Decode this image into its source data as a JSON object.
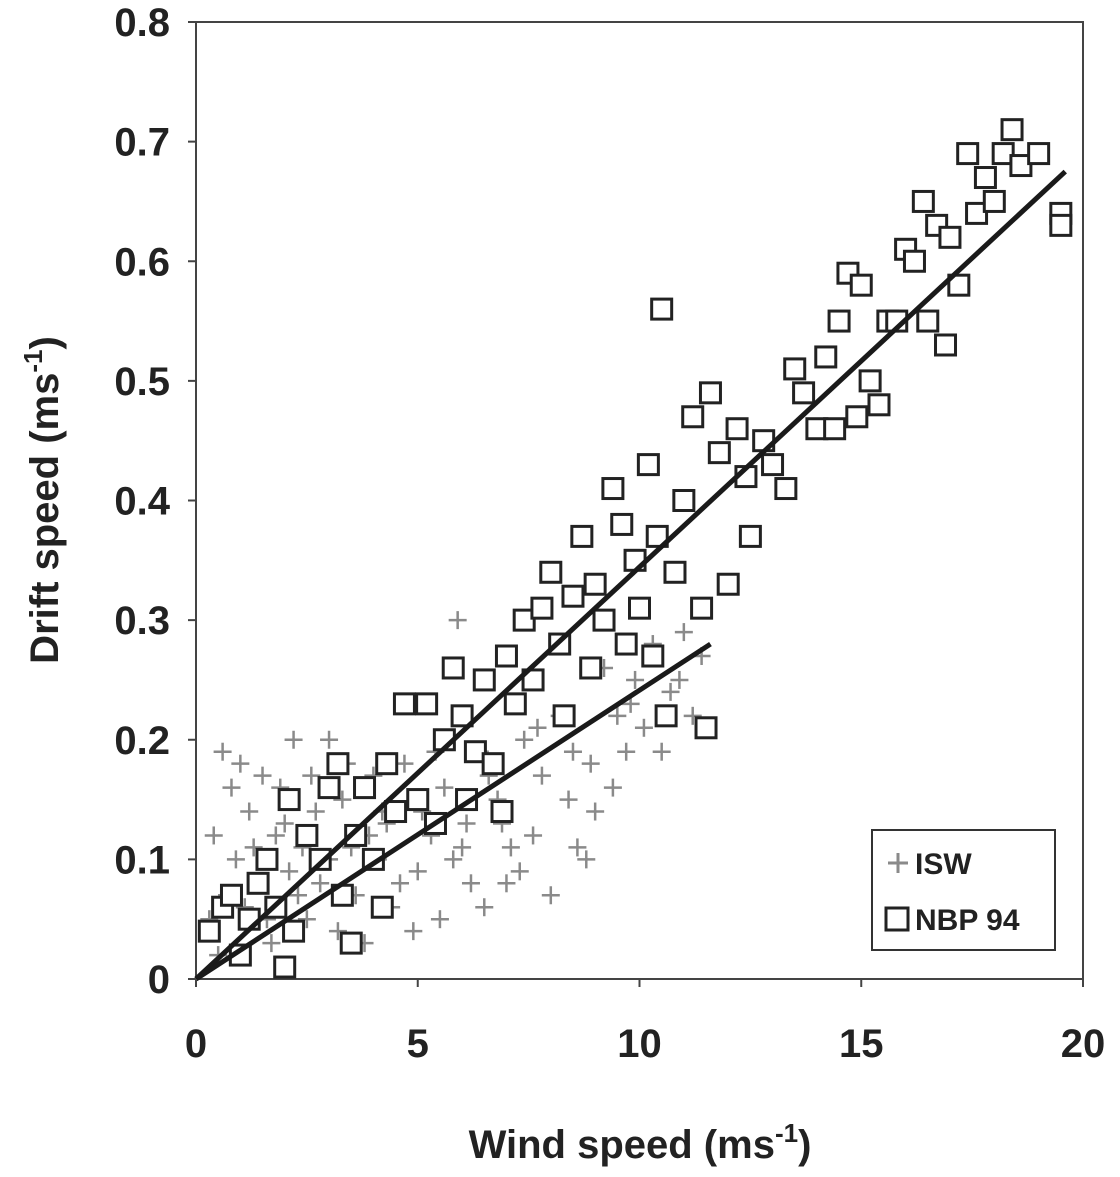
{
  "chart_data": {
    "type": "scatter",
    "xlabel": "Wind speed (ms",
    "xlabel_sup": "-1",
    "xlabel_end": ")",
    "ylabel": "Drift speed (ms",
    "ylabel_sup": "-1",
    "ylabel_end": ")",
    "xlim": [
      0,
      20
    ],
    "ylim": [
      0,
      0.8
    ],
    "x_ticks": [
      "0",
      "5",
      "10",
      "15",
      "20"
    ],
    "y_ticks": [
      "0",
      "0.1",
      "0.2",
      "0.3",
      "0.4",
      "0.5",
      "0.6",
      "0.7",
      "0.8"
    ],
    "grid": false,
    "legend_position": "bottom-right",
    "series": [
      {
        "name": "ISW",
        "marker": "cross",
        "color": "#8a8a8a",
        "description_range": "dense cloud for wind 0–12 ms-1, drift 0–0.3 ms-1",
        "points": [
          [
            0.6,
            0.19
          ],
          [
            0.8,
            0.16
          ],
          [
            1.0,
            0.18
          ],
          [
            1.2,
            0.14
          ],
          [
            0.4,
            0.12
          ],
          [
            0.9,
            0.1
          ],
          [
            1.5,
            0.17
          ],
          [
            1.8,
            0.12
          ],
          [
            2.2,
            0.2
          ],
          [
            2.6,
            0.17
          ],
          [
            3.0,
            0.2
          ],
          [
            3.3,
            0.15
          ],
          [
            2.1,
            0.09
          ],
          [
            2.8,
            0.08
          ],
          [
            3.5,
            0.11
          ],
          [
            4.0,
            0.17
          ],
          [
            4.3,
            0.13
          ],
          [
            4.7,
            0.18
          ],
          [
            5.0,
            0.09
          ],
          [
            5.3,
            0.12
          ],
          [
            5.6,
            0.16
          ],
          [
            5.9,
            0.3
          ],
          [
            6.1,
            0.13
          ],
          [
            6.4,
            0.19
          ],
          [
            6.8,
            0.15
          ],
          [
            7.1,
            0.11
          ],
          [
            7.4,
            0.2
          ],
          [
            7.8,
            0.17
          ],
          [
            8.0,
            0.07
          ],
          [
            8.2,
            0.22
          ],
          [
            8.6,
            0.11
          ],
          [
            8.9,
            0.18
          ],
          [
            9.2,
            0.26
          ],
          [
            9.5,
            0.22
          ],
          [
            9.9,
            0.25
          ],
          [
            10.3,
            0.28
          ],
          [
            10.7,
            0.24
          ],
          [
            11.0,
            0.29
          ],
          [
            11.4,
            0.27
          ],
          [
            7.0,
            0.08
          ],
          [
            6.5,
            0.06
          ],
          [
            5.5,
            0.05
          ],
          [
            4.9,
            0.04
          ],
          [
            4.4,
            0.06
          ],
          [
            3.8,
            0.03
          ],
          [
            3.2,
            0.04
          ],
          [
            2.5,
            0.05
          ],
          [
            1.7,
            0.03
          ],
          [
            0.3,
            0.05
          ],
          [
            0.5,
            0.02
          ],
          [
            1.1,
            0.06
          ],
          [
            1.4,
            0.08
          ],
          [
            2.0,
            0.13
          ],
          [
            2.4,
            0.11
          ],
          [
            3.6,
            0.07
          ],
          [
            4.1,
            0.1
          ],
          [
            5.1,
            0.14
          ],
          [
            5.8,
            0.1
          ],
          [
            6.2,
            0.08
          ],
          [
            6.9,
            0.13
          ],
          [
            7.6,
            0.12
          ],
          [
            8.4,
            0.15
          ],
          [
            9.0,
            0.14
          ],
          [
            9.7,
            0.19
          ],
          [
            10.1,
            0.21
          ],
          [
            10.5,
            0.19
          ],
          [
            8.8,
            0.1
          ],
          [
            9.4,
            0.16
          ],
          [
            7.3,
            0.09
          ],
          [
            6.0,
            0.11
          ],
          [
            4.6,
            0.08
          ],
          [
            3.9,
            0.12
          ],
          [
            3.0,
            0.1
          ],
          [
            2.3,
            0.07
          ],
          [
            1.6,
            0.05
          ],
          [
            0.7,
            0.07
          ],
          [
            1.3,
            0.11
          ],
          [
            1.9,
            0.16
          ],
          [
            2.7,
            0.14
          ],
          [
            3.4,
            0.18
          ],
          [
            4.2,
            0.14
          ],
          [
            5.4,
            0.19
          ],
          [
            6.6,
            0.17
          ],
          [
            7.7,
            0.21
          ],
          [
            8.5,
            0.19
          ],
          [
            9.8,
            0.23
          ],
          [
            10.9,
            0.25
          ],
          [
            11.2,
            0.22
          ]
        ]
      },
      {
        "name": "NBP 94",
        "marker": "square",
        "color": "#222222",
        "points": [
          [
            0.3,
            0.04
          ],
          [
            0.6,
            0.06
          ],
          [
            0.8,
            0.07
          ],
          [
            1.0,
            0.02
          ],
          [
            1.2,
            0.05
          ],
          [
            1.4,
            0.08
          ],
          [
            1.6,
            0.1
          ],
          [
            1.8,
            0.06
          ],
          [
            2.0,
            0.01
          ],
          [
            2.1,
            0.15
          ],
          [
            2.2,
            0.04
          ],
          [
            2.5,
            0.12
          ],
          [
            2.8,
            0.1
          ],
          [
            3.0,
            0.16
          ],
          [
            3.2,
            0.18
          ],
          [
            3.3,
            0.07
          ],
          [
            3.5,
            0.03
          ],
          [
            3.6,
            0.12
          ],
          [
            3.8,
            0.16
          ],
          [
            4.0,
            0.1
          ],
          [
            4.2,
            0.06
          ],
          [
            4.3,
            0.18
          ],
          [
            4.5,
            0.14
          ],
          [
            4.7,
            0.23
          ],
          [
            5.0,
            0.15
          ],
          [
            5.2,
            0.23
          ],
          [
            5.4,
            0.13
          ],
          [
            5.6,
            0.2
          ],
          [
            5.8,
            0.26
          ],
          [
            6.0,
            0.22
          ],
          [
            6.1,
            0.15
          ],
          [
            6.3,
            0.19
          ],
          [
            6.5,
            0.25
          ],
          [
            6.7,
            0.18
          ],
          [
            6.9,
            0.14
          ],
          [
            7.0,
            0.27
          ],
          [
            7.2,
            0.23
          ],
          [
            7.4,
            0.3
          ],
          [
            7.6,
            0.25
          ],
          [
            7.8,
            0.31
          ],
          [
            8.0,
            0.34
          ],
          [
            8.2,
            0.28
          ],
          [
            8.3,
            0.22
          ],
          [
            8.5,
            0.32
          ],
          [
            8.7,
            0.37
          ],
          [
            8.9,
            0.26
          ],
          [
            9.0,
            0.33
          ],
          [
            9.2,
            0.3
          ],
          [
            9.4,
            0.41
          ],
          [
            9.6,
            0.38
          ],
          [
            9.7,
            0.28
          ],
          [
            9.9,
            0.35
          ],
          [
            10.0,
            0.31
          ],
          [
            10.2,
            0.43
          ],
          [
            10.3,
            0.27
          ],
          [
            10.4,
            0.37
          ],
          [
            10.5,
            0.56
          ],
          [
            10.6,
            0.22
          ],
          [
            10.8,
            0.34
          ],
          [
            11.0,
            0.4
          ],
          [
            11.2,
            0.47
          ],
          [
            11.4,
            0.31
          ],
          [
            11.5,
            0.21
          ],
          [
            11.6,
            0.49
          ],
          [
            11.8,
            0.44
          ],
          [
            12.0,
            0.33
          ],
          [
            12.2,
            0.46
          ],
          [
            12.4,
            0.42
          ],
          [
            12.5,
            0.37
          ],
          [
            12.8,
            0.45
          ],
          [
            13.0,
            0.43
          ],
          [
            13.3,
            0.41
          ],
          [
            13.5,
            0.51
          ],
          [
            13.7,
            0.49
          ],
          [
            14.0,
            0.46
          ],
          [
            14.2,
            0.52
          ],
          [
            14.4,
            0.46
          ],
          [
            14.5,
            0.55
          ],
          [
            14.7,
            0.59
          ],
          [
            14.9,
            0.47
          ],
          [
            15.0,
            0.58
          ],
          [
            15.2,
            0.5
          ],
          [
            15.4,
            0.48
          ],
          [
            15.6,
            0.55
          ],
          [
            15.8,
            0.55
          ],
          [
            16.0,
            0.61
          ],
          [
            16.2,
            0.6
          ],
          [
            16.4,
            0.65
          ],
          [
            16.5,
            0.55
          ],
          [
            16.7,
            0.63
          ],
          [
            16.9,
            0.53
          ],
          [
            17.0,
            0.62
          ],
          [
            17.2,
            0.58
          ],
          [
            17.4,
            0.69
          ],
          [
            17.6,
            0.64
          ],
          [
            17.8,
            0.67
          ],
          [
            18.0,
            0.65
          ],
          [
            18.2,
            0.69
          ],
          [
            18.4,
            0.71
          ],
          [
            18.6,
            0.68
          ],
          [
            19.0,
            0.69
          ],
          [
            19.5,
            0.64
          ],
          [
            19.5,
            0.63
          ]
        ]
      }
    ],
    "fit_lines": [
      {
        "series": "NBP 94",
        "x": [
          0,
          19.6
        ],
        "y": [
          0,
          0.675
        ]
      },
      {
        "series": "ISW",
        "x": [
          0,
          11.6
        ],
        "y": [
          0,
          0.28
        ]
      }
    ],
    "legend": [
      {
        "label": "ISW",
        "marker": "cross"
      },
      {
        "label": "NBP 94",
        "marker": "square"
      }
    ]
  }
}
